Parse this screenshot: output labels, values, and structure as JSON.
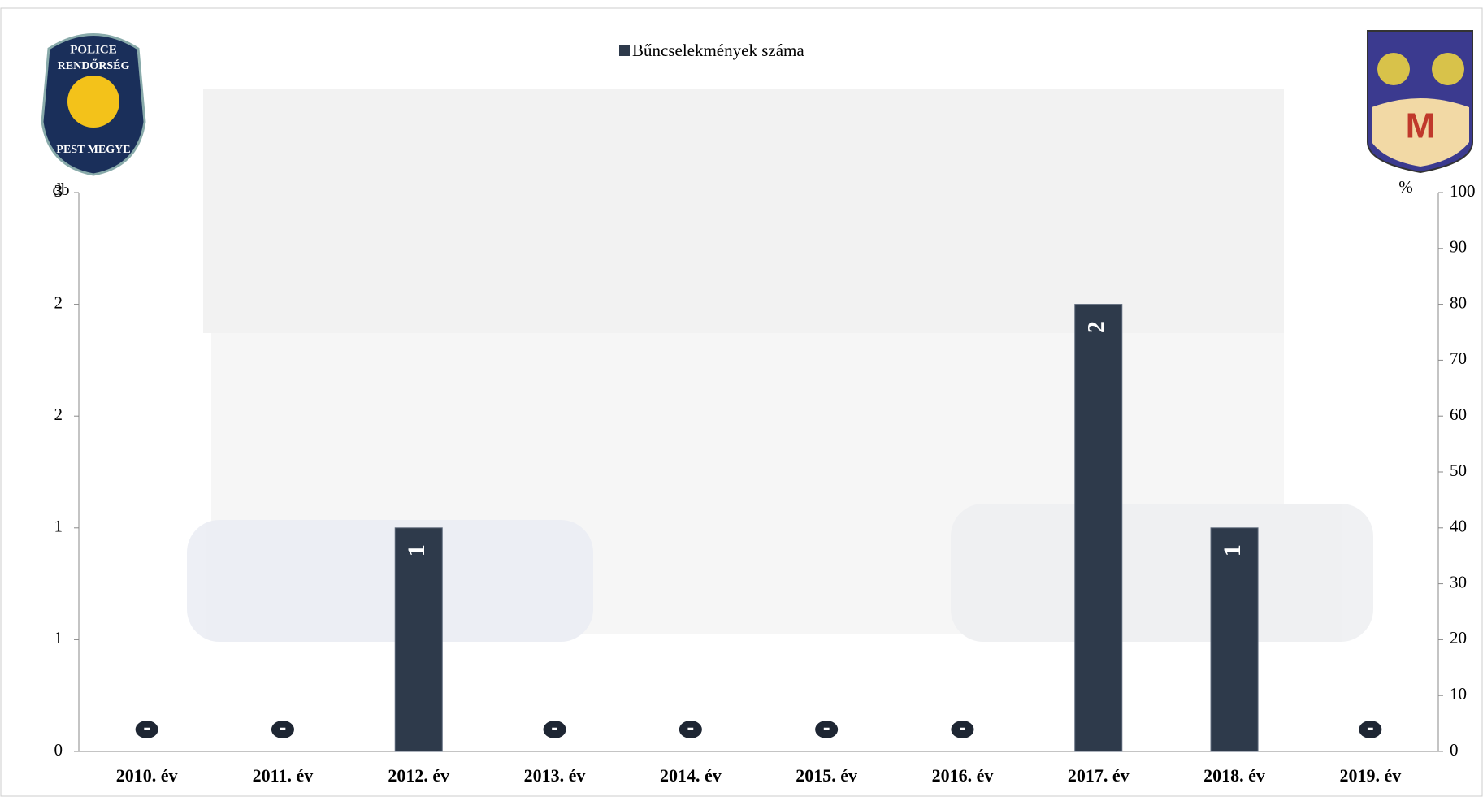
{
  "chart_data": {
    "type": "bar",
    "legend": "Bűncselekmények száma",
    "y_label": "db",
    "y2_label": "%",
    "categories": [
      "2010. év",
      "2011. év",
      "2012. év",
      "2013. év",
      "2014. év",
      "2015. év",
      "2016. év",
      "2017. év",
      "2018. év",
      "2019. év"
    ],
    "values": [
      0,
      0,
      1,
      0,
      0,
      0,
      0,
      2,
      1,
      0
    ],
    "value_labels": [
      "-",
      "-",
      "1",
      "-",
      "-",
      "-",
      "-",
      "2",
      "1",
      "-"
    ],
    "color": "#2e3a4b",
    "ylim": [
      0,
      2.5
    ],
    "yticks": [
      0,
      {
        "value": 0.5,
        "label": "1"
      },
      1,
      {
        "value": 1.5,
        "label": "2"
      },
      2,
      {
        "value": 2.5,
        "label": "3"
      }
    ],
    "y2lim": [
      0,
      100
    ],
    "y2ticks": [
      0,
      10,
      20,
      30,
      40,
      50,
      60,
      70,
      80,
      90,
      100
    ],
    "grid": false
  },
  "logos": {
    "police": [
      "POLICE",
      "RENDŐRSÉG",
      "PEST MEGYE"
    ],
    "crest": "M"
  }
}
